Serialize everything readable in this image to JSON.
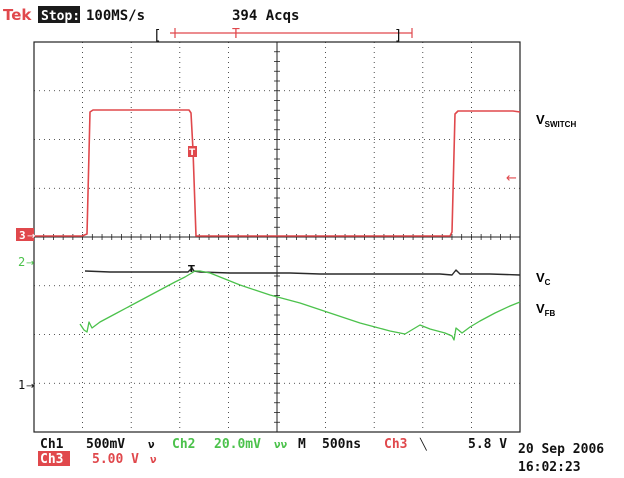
{
  "header": {
    "brand": "Tek",
    "state": "Stop:",
    "sample_rate": "100MS/s",
    "acquisitions": "394 Acqs",
    "trigger_window": {
      "left": "[",
      "mark": "T",
      "right": "]"
    }
  },
  "colors": {
    "ch3": "#e0484c",
    "ch2": "#4cc24c",
    "ch1": "#222222",
    "grid": "#222222",
    "text": "#111111"
  },
  "channel_markers": {
    "ch3": "3",
    "ch2": "2",
    "ch1": "1"
  },
  "trigger_marker": "T",
  "signal_labels": {
    "switch": {
      "main": "V",
      "sub": "SWITCH"
    },
    "c": {
      "main": "V",
      "sub": "C"
    },
    "fb": {
      "main": "V",
      "sub": "FB"
    }
  },
  "readout": {
    "ch1": {
      "label": "Ch1",
      "scale": "500mV",
      "coupling": "ν"
    },
    "ch2": {
      "label": "Ch2",
      "scale": "20.0mV",
      "coupling": "νν"
    },
    "ch3": {
      "label": "Ch3",
      "scale": "5.00 V",
      "coupling": "ν"
    },
    "time": {
      "prefix": "M",
      "scale": "500ns"
    },
    "trigger": {
      "source": "Ch3",
      "slope": "╲",
      "level": "5.8 V"
    },
    "date": "20 Sep 2006",
    "time_of_day": "16:02:23"
  }
}
